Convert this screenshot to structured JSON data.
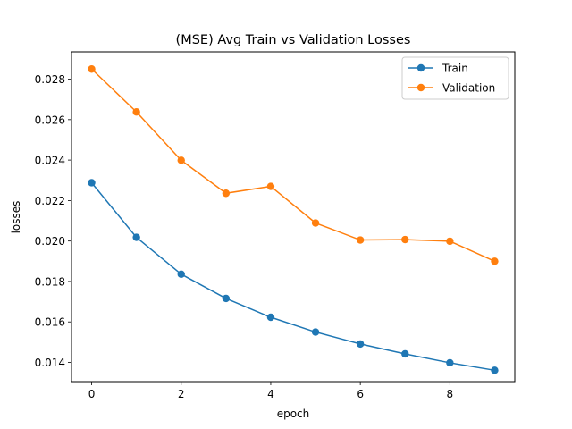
{
  "chart_data": {
    "type": "line",
    "title": "(MSE) Avg Train vs Validation Losses",
    "xlabel": "epoch",
    "ylabel": "losses",
    "xlim": [
      -0.45,
      9.45
    ],
    "ylim": [
      0.01305,
      0.02935
    ],
    "xticks": [
      0,
      2,
      4,
      6,
      8
    ],
    "xtick_labels": [
      "0",
      "2",
      "4",
      "6",
      "8"
    ],
    "yticks": [
      0.014,
      0.016,
      0.018,
      0.02,
      0.022,
      0.024,
      0.026,
      0.028
    ],
    "ytick_labels": [
      "0.014",
      "0.016",
      "0.018",
      "0.020",
      "0.022",
      "0.024",
      "0.026",
      "0.028"
    ],
    "grid": false,
    "legend_position": "top-right",
    "x": [
      0,
      1,
      2,
      3,
      4,
      5,
      6,
      7,
      8,
      9
    ],
    "series": [
      {
        "name": "Train",
        "color": "#1f77b4",
        "marker": "circle",
        "values": [
          0.02288,
          0.02018,
          0.01836,
          0.01716,
          0.01623,
          0.0155,
          0.01491,
          0.01442,
          0.01398,
          0.01361
        ]
      },
      {
        "name": "Validation",
        "color": "#ff7f0e",
        "marker": "circle",
        "values": [
          0.0285,
          0.02638,
          0.02399,
          0.02236,
          0.0227,
          0.02089,
          0.02005,
          0.02007,
          0.01999,
          0.019
        ]
      }
    ]
  }
}
